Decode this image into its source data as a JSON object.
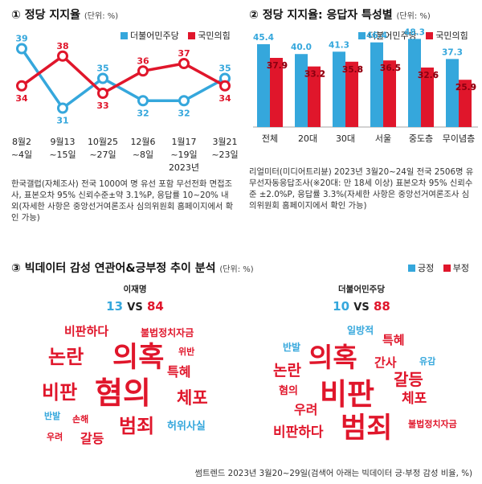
{
  "colors": {
    "blue": "#35a7dc",
    "red": "#e0162b",
    "text": "#222222"
  },
  "section1": {
    "title": "① 정당 지지율",
    "unit": "(단위: %)",
    "chart_data": {
      "type": "line",
      "categories": [
        [
          "8월2",
          "~4일"
        ],
        [
          "9월13",
          "~15일"
        ],
        [
          "10월25",
          "~27일"
        ],
        [
          "12월6",
          "~8일"
        ],
        [
          "1월17",
          "~19일",
          "2023년"
        ],
        [
          "3월21",
          "~23일"
        ]
      ],
      "series": [
        {
          "name": "더불어민주당",
          "color": "#35a7dc",
          "values": [
            39,
            31,
            35,
            32,
            32,
            35
          ]
        },
        {
          "name": "국민의힘",
          "color": "#e0162b",
          "values": [
            34,
            38,
            33,
            36,
            37,
            34
          ]
        }
      ],
      "ylim": [
        29,
        41
      ]
    },
    "note": "한국갤럽(자체조사) 전국 1000여 명 유선 포함 무선전화 면접조사, 표본오차 95% 신뢰수준±약 3.1%P, 응답률 10~20% 내외(자세한 사항은 중앙선거여론조사 심의위원회 홈페이지에서 확인 가능)"
  },
  "section2": {
    "title": "② 정당 지지율: 응답자 특성별",
    "unit": "(단위: %)",
    "chart_data": {
      "type": "bar",
      "categories": [
        "전체",
        "20대",
        "30대",
        "서울",
        "중도층",
        "무이념층"
      ],
      "series": [
        {
          "name": "더불어민주당",
          "color": "#35a7dc",
          "values": [
            45.4,
            40.0,
            41.3,
            46.4,
            48.3,
            37.3
          ]
        },
        {
          "name": "국민의힘",
          "color": "#e0162b",
          "values": [
            37.9,
            33.2,
            35.8,
            36.5,
            32.6,
            25.9
          ]
        }
      ],
      "ylim": [
        0,
        52
      ]
    },
    "note": "리얼미터(미디어트리뷴) 2023년 3월20~24일 전국 2506명 유무선자동응답조사(※20대: 만 18세 이상) 표본오차 95% 신뢰수준 ±2.0%P, 응답률 3.3%(자세한 사항은 중앙선거여론조사 심의위원회 홈페이지에서 확인 가능)"
  },
  "section3": {
    "title": "③ 빅데이터 감성 연관어&긍부정 추이 분석",
    "unit": "(단위: %)",
    "legend": [
      {
        "label": "긍정",
        "color": "#35a7dc"
      },
      {
        "label": "부정",
        "color": "#e0162b"
      }
    ],
    "left": {
      "name": "이재명",
      "pos": "13",
      "vs": "VS",
      "neg": "84",
      "words": [
        {
          "text": "비판하다",
          "tone": "neg"
        },
        {
          "text": "불법정치자금",
          "tone": "neg"
        },
        {
          "text": "논란",
          "tone": "neg"
        },
        {
          "text": "의혹",
          "tone": "neg"
        },
        {
          "text": "위반",
          "tone": "neg"
        },
        {
          "text": "특혜",
          "tone": "neg"
        },
        {
          "text": "비판",
          "tone": "neg"
        },
        {
          "text": "혐의",
          "tone": "neg"
        },
        {
          "text": "체포",
          "tone": "neg"
        },
        {
          "text": "반발",
          "tone": "pos"
        },
        {
          "text": "손해",
          "tone": "neg"
        },
        {
          "text": "허위사실",
          "tone": "pos"
        },
        {
          "text": "범죄",
          "tone": "neg"
        },
        {
          "text": "우려",
          "tone": "neg"
        },
        {
          "text": "갈등",
          "tone": "neg"
        }
      ]
    },
    "right": {
      "name": "더불어민주당",
      "pos": "10",
      "vs": "VS",
      "neg": "88",
      "words": [
        {
          "text": "일방적",
          "tone": "pos"
        },
        {
          "text": "특혜",
          "tone": "neg"
        },
        {
          "text": "반발",
          "tone": "pos"
        },
        {
          "text": "의혹",
          "tone": "neg"
        },
        {
          "text": "간사",
          "tone": "neg"
        },
        {
          "text": "유감",
          "tone": "pos"
        },
        {
          "text": "논란",
          "tone": "neg"
        },
        {
          "text": "비판",
          "tone": "neg"
        },
        {
          "text": "갈등",
          "tone": "neg"
        },
        {
          "text": "혐의",
          "tone": "neg"
        },
        {
          "text": "체포",
          "tone": "neg"
        },
        {
          "text": "우려",
          "tone": "neg"
        },
        {
          "text": "불법정치자금",
          "tone": "neg"
        },
        {
          "text": "비판하다",
          "tone": "neg"
        },
        {
          "text": "범죄",
          "tone": "neg"
        }
      ]
    },
    "source": "썸트렌드 2023년 3월20~29일(검색어 아래는 빅데이터 긍·부정 감성 비율, %)"
  }
}
